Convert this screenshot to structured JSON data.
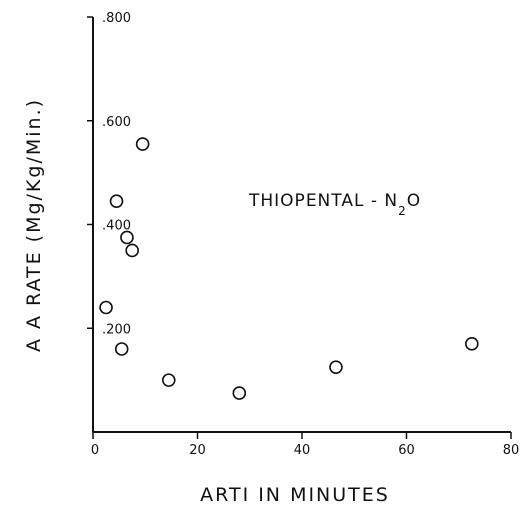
{
  "chart_data": {
    "type": "scatter",
    "xlabel": "ARTI IN MINUTES",
    "ylabel": "A A RATE (Mg/Kg/Min.)",
    "xlim": [
      0,
      80
    ],
    "ylim": [
      0,
      0.8
    ],
    "x_ticks": [
      "0",
      "20",
      "40",
      "60",
      "80"
    ],
    "y_ticks": [
      ".200",
      ".400",
      ".600",
      ".800"
    ],
    "y_tick_values": [
      0.2,
      0.4,
      0.6,
      0.8
    ],
    "annotation": {
      "main": "THIOPENTAL - N",
      "subscript": "2",
      "suffix": "O"
    },
    "grid": false,
    "marker": "open-circle",
    "points": [
      {
        "x": 9.5,
        "y": 0.555
      },
      {
        "x": 4.5,
        "y": 0.445
      },
      {
        "x": 6.5,
        "y": 0.375
      },
      {
        "x": 7.5,
        "y": 0.35
      },
      {
        "x": 2.5,
        "y": 0.24
      },
      {
        "x": 5.5,
        "y": 0.16
      },
      {
        "x": 14.5,
        "y": 0.1
      },
      {
        "x": 28,
        "y": 0.075
      },
      {
        "x": 46.5,
        "y": 0.125
      },
      {
        "x": 72.5,
        "y": 0.17
      }
    ]
  }
}
